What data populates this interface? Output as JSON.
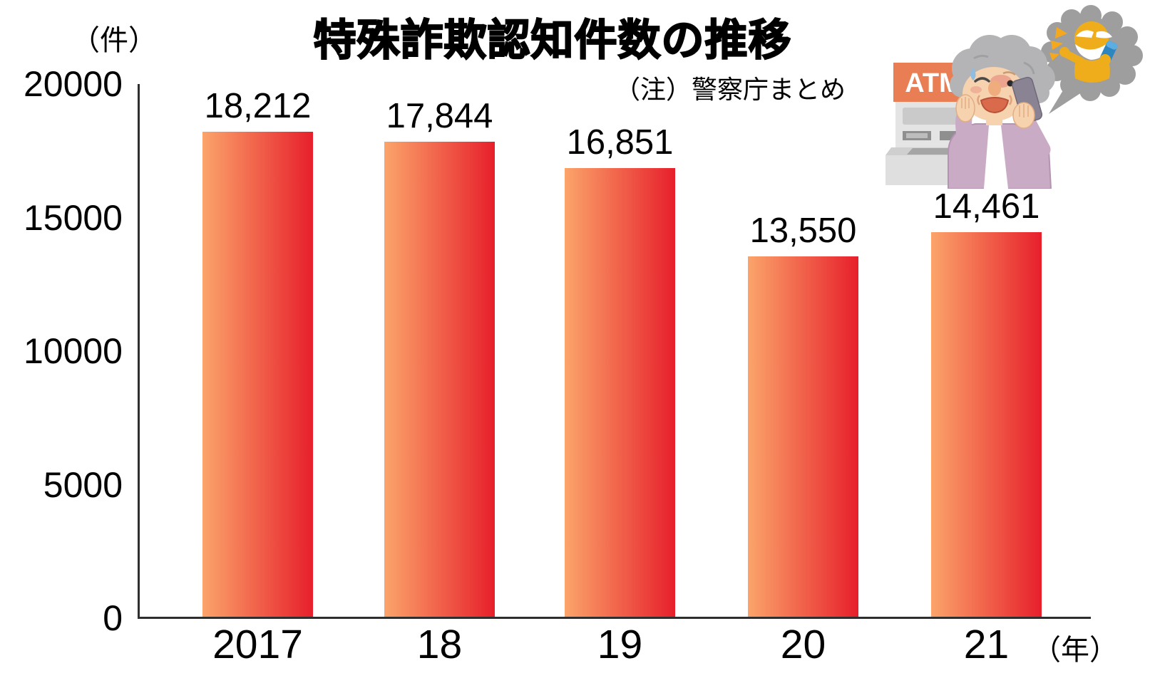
{
  "header": {
    "title": "特殊詐欺認知件数の推移",
    "note": "（注）警察庁まとめ"
  },
  "axes": {
    "y_unit_label": "（件）",
    "x_unit_label": "（年）"
  },
  "chart_data": {
    "type": "bar",
    "title": "特殊詐欺認知件数の推移",
    "categories": [
      "2017",
      "18",
      "19",
      "20",
      "21"
    ],
    "values": [
      18212,
      17844,
      16851,
      13550,
      14461
    ],
    "value_labels": [
      "18,212",
      "17,844",
      "16,851",
      "13,550",
      "14,461"
    ],
    "xlabel": "年",
    "ylabel": "件",
    "ylim": [
      0,
      20000
    ],
    "yticks": [
      0,
      5000,
      10000,
      15000,
      20000
    ],
    "grid": false,
    "legend": false,
    "bar_gradient": [
      "#FBA46A",
      "#E71F2B"
    ],
    "source_note": "（注）警察庁まとめ"
  },
  "colors": {
    "bar_start": "#FBA46A",
    "bar_end": "#E71F2B",
    "axis": "#2E2E2E",
    "text": "#000000",
    "atm_orange": "#E97E54",
    "bubble_gray": "#9E9E9E",
    "scammer_yellow": "#EFAD1B",
    "phone_blue": "#2E86C1",
    "woman_skin": "#F6D2AF",
    "woman_hair": "#B4B4B6",
    "cardigan_purple": "#C9ABC6"
  },
  "illustration": {
    "atm_sign_label": "ATM"
  }
}
